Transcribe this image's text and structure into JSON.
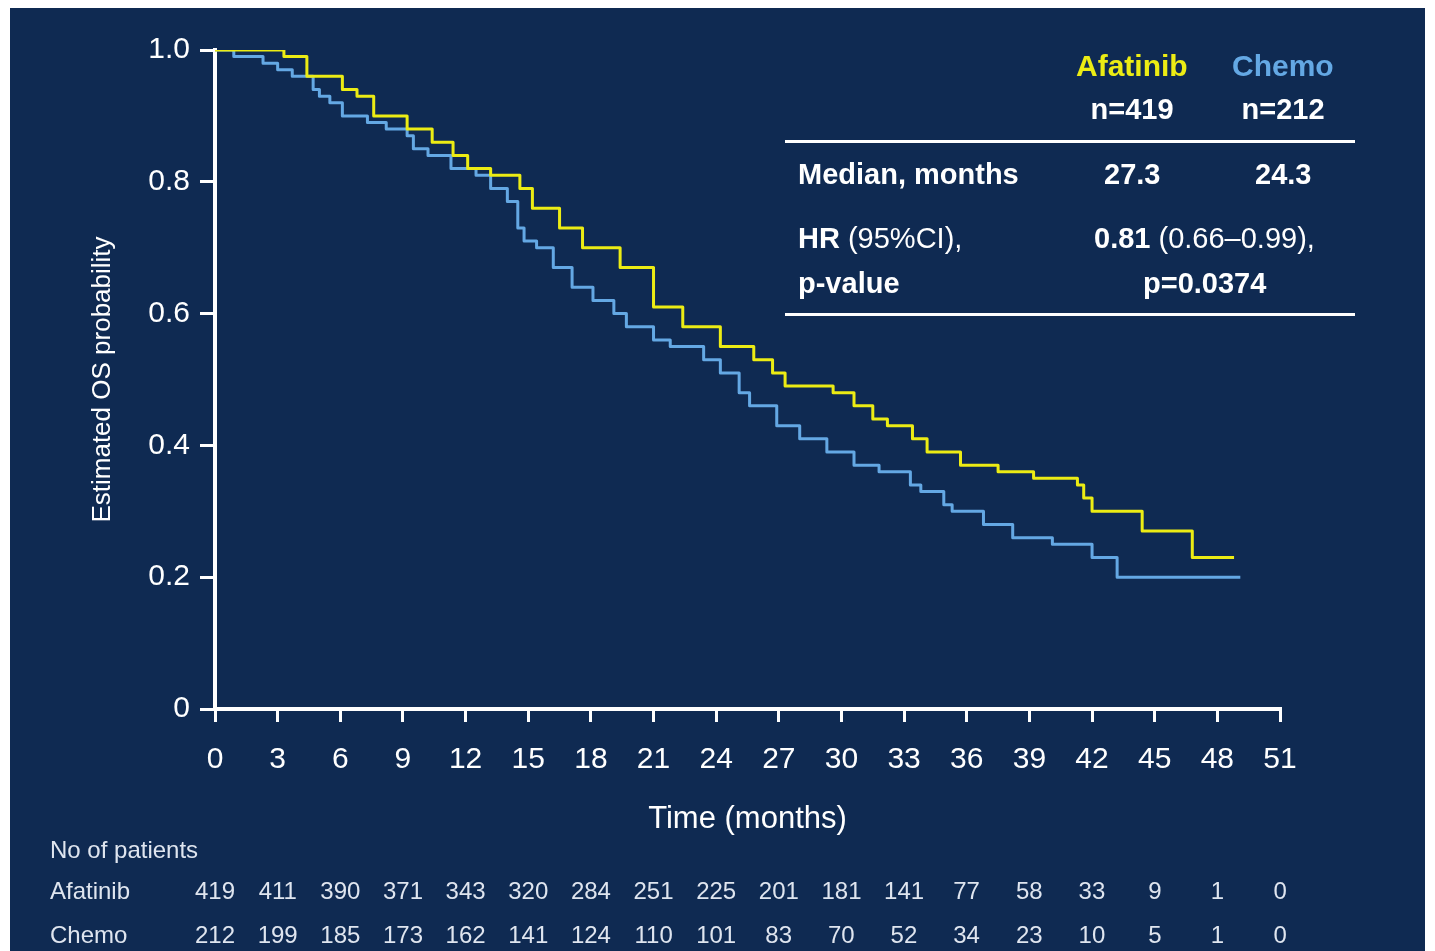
{
  "chart_data": {
    "type": "step",
    "xlabel": "Time (months)",
    "ylabel": "Estimated OS probability",
    "xlim": [
      0,
      51
    ],
    "xticks": [
      0,
      3,
      6,
      9,
      12,
      15,
      18,
      21,
      24,
      27,
      30,
      33,
      36,
      39,
      42,
      45,
      48,
      51
    ],
    "ylim": [
      0,
      1
    ],
    "yticks": [
      0,
      0.2,
      0.4,
      0.6,
      0.8,
      {
        "value": 1,
        "label": "1.0"
      }
    ],
    "legend": "top right",
    "series": [
      {
        "name": "Afatinib",
        "color": "#ecec14",
        "x": [
          0,
          3.3,
          4.4,
          6.1,
          6.8,
          7.6,
          9.2,
          10.4,
          11.4,
          12.1,
          13.2,
          14.6,
          15.2,
          16.5,
          17.6,
          19.4,
          21.0,
          22.4,
          24.2,
          25.8,
          26.7,
          27.3,
          29.6,
          30.6,
          31.5,
          32.2,
          33.4,
          34.1,
          35.7,
          37.5,
          39.2,
          41.3,
          41.6,
          42.0,
          44.4,
          46.8,
          48.8
        ],
        "values": [
          1,
          0.99,
          0.96,
          0.94,
          0.93,
          0.9,
          0.88,
          0.86,
          0.84,
          0.82,
          0.81,
          0.79,
          0.76,
          0.73,
          0.7,
          0.67,
          0.61,
          0.58,
          0.55,
          0.53,
          0.51,
          0.49,
          0.48,
          0.46,
          0.44,
          0.43,
          0.41,
          0.39,
          0.37,
          0.36,
          0.35,
          0.34,
          0.32,
          0.3,
          0.27,
          0.23,
          0.23
        ]
      },
      {
        "name": "Chemo",
        "color": "#64a8e4",
        "x": [
          0,
          0.9,
          2.3,
          3.0,
          3.7,
          4.7,
          5.0,
          5.5,
          6.1,
          7.3,
          8.2,
          9.2,
          9.5,
          10.2,
          11.3,
          12.5,
          13.2,
          14.0,
          14.5,
          14.8,
          15.4,
          16.2,
          17.1,
          18.1,
          19.1,
          19.7,
          21.0,
          21.8,
          23.4,
          24.2,
          25.1,
          25.6,
          26.9,
          28.0,
          29.3,
          30.6,
          31.8,
          33.3,
          33.8,
          34.9,
          35.3,
          36.8,
          38.2,
          40.1,
          42.0,
          43.2,
          49.1
        ],
        "values": [
          1,
          0.99,
          0.98,
          0.97,
          0.96,
          0.94,
          0.93,
          0.92,
          0.9,
          0.89,
          0.88,
          0.87,
          0.85,
          0.84,
          0.82,
          0.81,
          0.79,
          0.77,
          0.73,
          0.71,
          0.7,
          0.67,
          0.64,
          0.62,
          0.6,
          0.58,
          0.56,
          0.55,
          0.53,
          0.51,
          0.48,
          0.46,
          0.43,
          0.41,
          0.39,
          0.37,
          0.36,
          0.34,
          0.33,
          0.31,
          0.3,
          0.28,
          0.26,
          0.25,
          0.23,
          0.2,
          0.2
        ]
      }
    ],
    "annotations": [
      "No of patients",
      "419 411 390 371 343 320 284 251 225 201 181 141 77 58 33 9 1 0",
      "212 199 185 173 162 141 124 110 101 83 70 52 34 23 10 5 1 0",
      "n=419",
      "n=212",
      "Median, months",
      "27.3",
      "24.3",
      "HR (95%CI),\np-value",
      "0.81 (0.66–0.99),\np=0.0374"
    ]
  }
}
